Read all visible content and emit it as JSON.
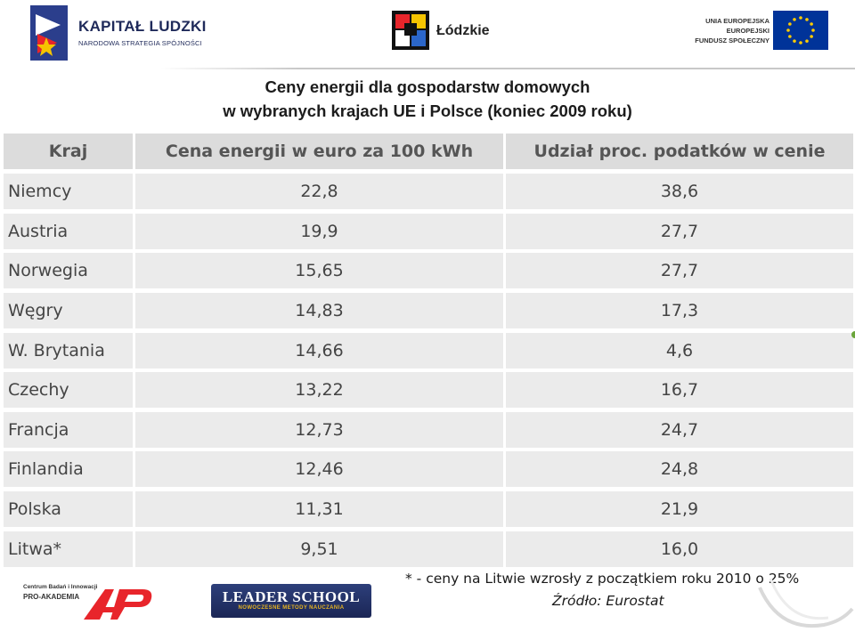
{
  "header": {
    "logo_left": {
      "title": "KAPITAŁ LUDZKI",
      "subtitle": "NARODOWA STRATEGIA SPÓJNOŚCI"
    },
    "logo_center": {
      "text": "Łódzkie"
    },
    "logo_right": {
      "line1": "UNIA EUROPEJSKA",
      "line2": "EUROPEJSKI",
      "line3": "FUNDUSZ SPOŁECZNY"
    }
  },
  "title": {
    "line1": "Ceny energii dla gospodarstw domowych",
    "line2": "w wybranych krajach UE i Polsce (koniec 2009 roku)"
  },
  "table": {
    "columns": [
      "Kraj",
      "Cena energii w euro za 100 kWh",
      "Udział proc. podatków w cenie"
    ],
    "rows": [
      {
        "country": "Niemcy",
        "price": "22,8",
        "tax": "38,6"
      },
      {
        "country": "Austria",
        "price": "19,9",
        "tax": "27,7"
      },
      {
        "country": "Norwegia",
        "price": "15,65",
        "tax": "27,7"
      },
      {
        "country": "Węgry",
        "price": "14,83",
        "tax": "17,3"
      },
      {
        "country": "W. Brytania",
        "price": "14,66",
        "tax": "4,6"
      },
      {
        "country": "Czechy",
        "price": "13,22",
        "tax": "16,7"
      },
      {
        "country": "Francja",
        "price": "12,73",
        "tax": "24,7"
      },
      {
        "country": "Finlandia",
        "price": "12,46",
        "tax": "24,8"
      },
      {
        "country": "Polska",
        "price": "11,31",
        "tax": "21,9"
      },
      {
        "country": "Litwa*",
        "price": "9,51",
        "tax": "16,0"
      }
    ]
  },
  "footer": {
    "note": "* - ceny na Litwie wzrosły z początkiem roku 2010 o 25%",
    "source": "Źródło: Eurostat",
    "logo_ap": {
      "line1": "Centrum Badań i Innowacji",
      "line2": "PRO-AKADEMIA"
    },
    "logo_leader": {
      "title": "LEADER SCHOOL",
      "subtitle": "NOWOCZESNE METODY NAUCZANIA"
    }
  },
  "colors": {
    "header_cell": "#dcdcdc",
    "body_cell": "#ebebeb",
    "eu_blue": "#003399",
    "eu_star": "#ffcc00"
  }
}
